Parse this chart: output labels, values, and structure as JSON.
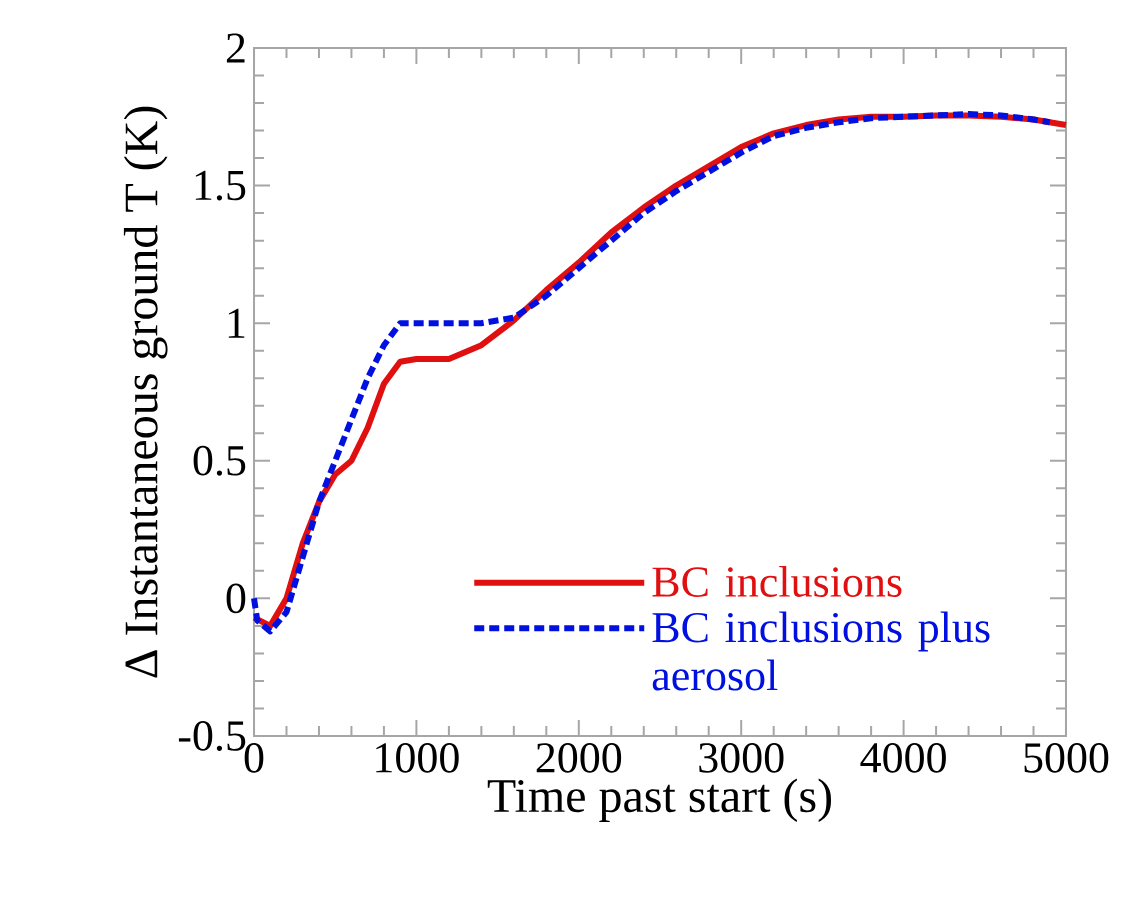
{
  "chart_data": {
    "type": "line",
    "xlabel": "Time past start (s)",
    "ylabel": "Δ Instantaneous ground T (K)",
    "xlim": [
      0,
      5000
    ],
    "xticks": [
      0,
      1000,
      2000,
      3000,
      4000,
      5000
    ],
    "ylim": [
      -0.5,
      2
    ],
    "yticks": [
      -0.5,
      0,
      0.5,
      1,
      1.5,
      2
    ],
    "grid": false,
    "legend": "bottom right",
    "marker": "none",
    "series": [
      {
        "name": "BC inclusions",
        "color": "#e01010",
        "line_style": "solid",
        "x": [
          0,
          100,
          200,
          300,
          400,
          500,
          600,
          700,
          800,
          900,
          1000,
          1200,
          1400,
          1600,
          1800,
          2000,
          2200,
          2400,
          2600,
          2800,
          3000,
          3200,
          3400,
          3600,
          3800,
          4000,
          4200,
          4400,
          4600,
          4800,
          5000
        ],
        "values": [
          -0.07,
          -0.1,
          0.0,
          0.2,
          0.35,
          0.45,
          0.5,
          0.62,
          0.78,
          0.86,
          0.87,
          0.87,
          0.92,
          1.01,
          1.12,
          1.22,
          1.33,
          1.42,
          1.5,
          1.57,
          1.64,
          1.69,
          1.72,
          1.74,
          1.75,
          1.75,
          1.755,
          1.755,
          1.75,
          1.74,
          1.72
        ]
      },
      {
        "name": "BC inclusions plus aerosol",
        "color": "#0010e0",
        "line_style": "dashed",
        "x": [
          0,
          20,
          100,
          200,
          300,
          400,
          500,
          600,
          700,
          800,
          900,
          1000,
          1200,
          1400,
          1600,
          1800,
          2000,
          2200,
          2400,
          2600,
          2800,
          3000,
          3200,
          3400,
          3600,
          3800,
          4000,
          4200,
          4400,
          4600,
          4800,
          4900
        ],
        "values": [
          0.0,
          -0.08,
          -0.12,
          -0.05,
          0.15,
          0.35,
          0.5,
          0.65,
          0.8,
          0.92,
          1.0,
          1.0,
          1.0,
          1.0,
          1.02,
          1.1,
          1.2,
          1.3,
          1.4,
          1.48,
          1.55,
          1.62,
          1.68,
          1.71,
          1.73,
          1.745,
          1.75,
          1.755,
          1.76,
          1.755,
          1.74,
          1.73
        ]
      }
    ]
  }
}
